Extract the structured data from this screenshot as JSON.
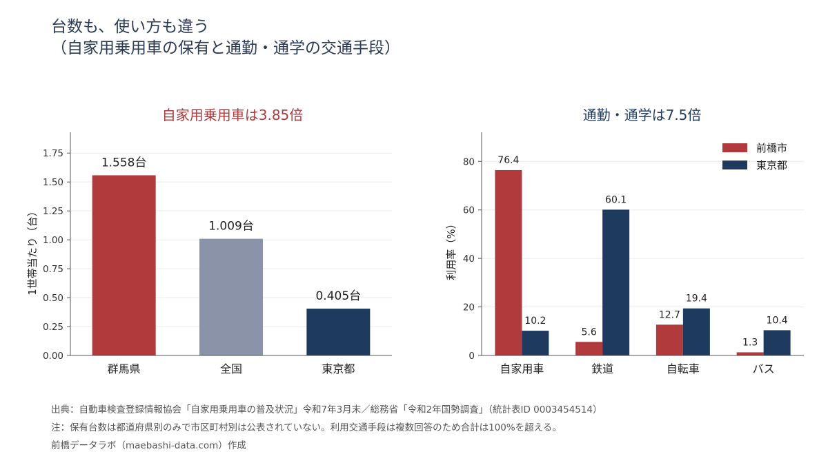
{
  "title_line1": "台数も、使い方も違う",
  "title_line2": "（自家用乗用車の保有と通勤・通学の交通手段）",
  "colors": {
    "maebashi": "#b03a3c",
    "national": "#8a93a8",
    "tokyo": "#1f3a5f",
    "title_left": "#b03a3c",
    "title_right": "#1f3a5f"
  },
  "chart_data": [
    {
      "type": "bar",
      "title": "自家用乗用車は3.85倍",
      "ylabel": "1世帯当たり（台）",
      "xlabel": "",
      "categories": [
        "群馬県",
        "全国",
        "東京都"
      ],
      "values": [
        1.558,
        1.009,
        0.405
      ],
      "value_labels": [
        "1.558台",
        "1.009台",
        "0.405台"
      ],
      "ylim": [
        0,
        1.93
      ],
      "yticks": [
        "0.00",
        "0.25",
        "0.50",
        "0.75",
        "1.00",
        "1.25",
        "1.50",
        "1.75"
      ],
      "ytick_values": [
        0,
        0.25,
        0.5,
        0.75,
        1.0,
        1.25,
        1.5,
        1.75
      ],
      "grid": true
    },
    {
      "type": "bar",
      "title": "通勤・通学は7.5倍",
      "ylabel": "利用率（%）",
      "xlabel": "",
      "categories": [
        "自家用車",
        "鉄道",
        "自転車",
        "バス"
      ],
      "series": [
        {
          "name": "前橋市",
          "values": [
            76.4,
            5.6,
            12.7,
            1.3
          ]
        },
        {
          "name": "東京都",
          "values": [
            10.2,
            60.1,
            19.4,
            10.4
          ]
        }
      ],
      "ylim": [
        0,
        92
      ],
      "yticks": [
        "0",
        "20",
        "40",
        "60",
        "80"
      ],
      "ytick_values": [
        0,
        20,
        40,
        60,
        80
      ],
      "legend_position": "top-right",
      "grid": true
    }
  ],
  "notes": [
    "出典：自動車検査登録情報協会「自家用乗用車の普及状況」令和7年3月末／総務省「令和2年国勢調査」（統計表ID 0003454514）",
    "注：保有台数は都道府県別のみで市区町村別は公表されていない。利用交通手段は複数回答のため合計は100%を超える。",
    "前橋データラボ（maebashi-data.com）作成"
  ]
}
